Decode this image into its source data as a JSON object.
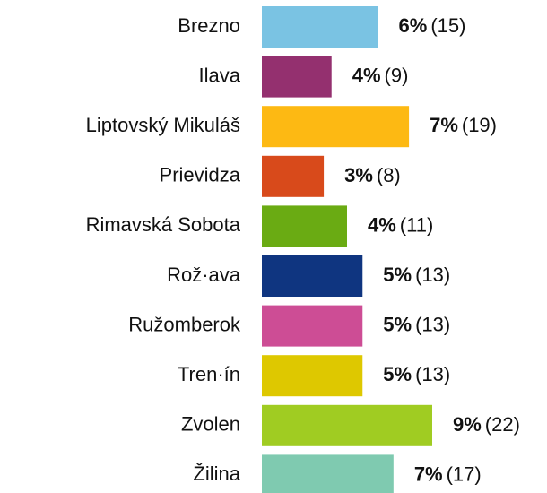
{
  "chart_data": {
    "type": "bar",
    "orientation": "horizontal",
    "categories": [
      "Brezno",
      "Ilava",
      "Liptovský Mikuláš",
      "Prievidza",
      "Rimavská Sobota",
      "Rož·ava",
      "Ružomberok",
      "Tren·ín",
      "Zvolen",
      "Žilina"
    ],
    "values": [
      15,
      9,
      19,
      8,
      11,
      13,
      13,
      13,
      22,
      17
    ],
    "value_labels": [
      "(15)",
      "(9)",
      "(19)",
      "(8)",
      "(11)",
      "(13)",
      "(13)",
      "(13)",
      "(22)",
      "(17)"
    ],
    "share_labels": [
      "6%",
      "4%",
      "7%",
      "3%",
      "4%",
      "5%",
      "5%",
      "5%",
      "9%",
      "7%"
    ],
    "colors": [
      "#7ac3e3",
      "#94306f",
      "#fdb913",
      "#d84a1b",
      "#6aab13",
      "#0f3580",
      "#cd4d95",
      "#dec800",
      "#a0cc22",
      "#7fcab0"
    ]
  }
}
